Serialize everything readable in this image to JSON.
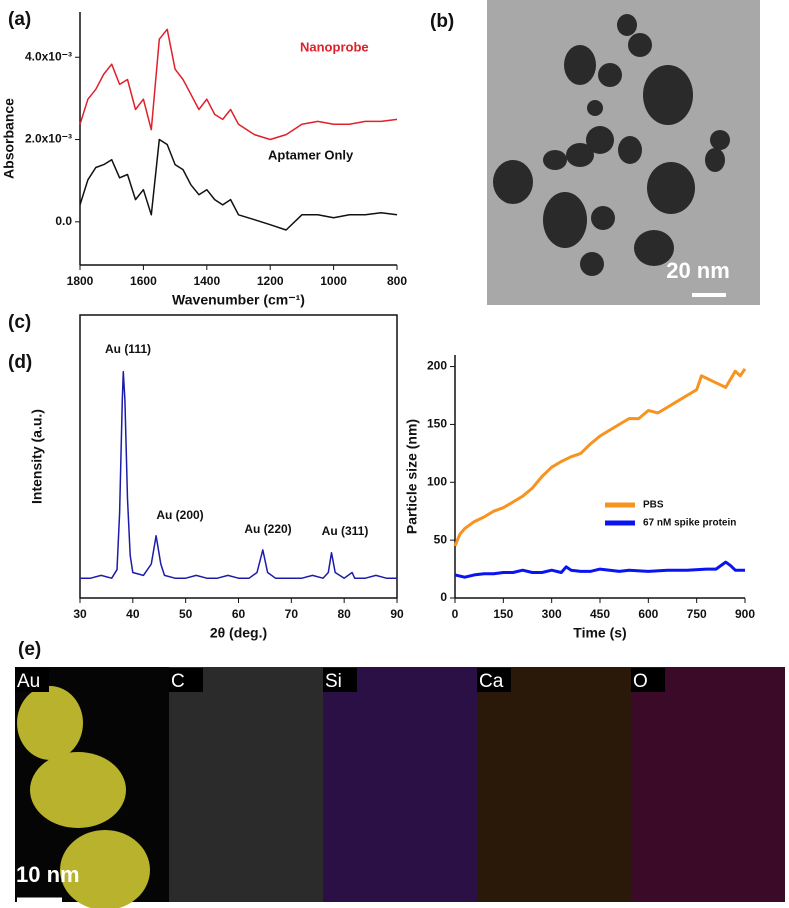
{
  "chart_data": [
    {
      "type": "line",
      "panel_label": "(a)",
      "x_label": "Wavenumber (cm⁻¹)",
      "y_label": "Absorbance",
      "x": [
        1800,
        1775,
        1750,
        1725,
        1700,
        1675,
        1650,
        1625,
        1600,
        1575,
        1550,
        1525,
        1500,
        1475,
        1450,
        1425,
        1400,
        1375,
        1350,
        1325,
        1300,
        1250,
        1200,
        1150,
        1100,
        1050,
        1000,
        950,
        900,
        850,
        800
      ],
      "xlim": [
        1800,
        800
      ],
      "xticks": [
        1800,
        1600,
        1400,
        1200,
        1000,
        800
      ],
      "ylim": [
        -0.00105,
        0.0051
      ],
      "yticks": [
        {
          "value": 0,
          "label": "0.0"
        },
        {
          "value": 0.002,
          "label": "2.0x10⁻³"
        },
        {
          "value": 0.004,
          "label": "4.0x10⁻³"
        }
      ],
      "series": [
        {
          "name": "Nanoprobe",
          "color": "#e0202a",
          "values": [
            0.00237,
            0.00298,
            0.00322,
            0.00359,
            0.00383,
            0.00334,
            0.00346,
            0.00273,
            0.00298,
            0.00224,
            0.00444,
            0.00468,
            0.00371,
            0.00346,
            0.0031,
            0.00273,
            0.00298,
            0.00261,
            0.00249,
            0.00273,
            0.00237,
            0.00212,
            0.002,
            0.00212,
            0.00237,
            0.00244,
            0.00237,
            0.00237,
            0.00244,
            0.00244,
            0.00249
          ]
        },
        {
          "name": "Aptamer Only",
          "color": "#111111",
          "values": [
            0.00041,
            0.00102,
            0.00132,
            0.00139,
            0.00151,
            0.00107,
            0.00115,
            0.00054,
            0.00078,
            0.00017,
            0.002,
            0.00188,
            0.00139,
            0.00127,
            0.0009,
            0.00066,
            0.00078,
            0.00054,
            0.00041,
            0.00054,
            0.00017,
            5e-05,
            -7e-05,
            -0.0002,
            0.00017,
            0.00017,
            0.0001,
            0.00017,
            0.00017,
            0.00022,
            0.00017
          ]
        }
      ]
    },
    {
      "type": "line",
      "panel_label": "(c)",
      "x_label": "2θ (deg.)",
      "y_label": "Intensity (a.u.)",
      "x": [
        30,
        32,
        34,
        36,
        37,
        37.5,
        38,
        38.2,
        38.5,
        39,
        39.5,
        40,
        42,
        43.5,
        44.4,
        45.3,
        46,
        48,
        50,
        52,
        54,
        56,
        58,
        60,
        62,
        63.5,
        64.6,
        65.5,
        67,
        70,
        72,
        74,
        76,
        77,
        77.6,
        78.3,
        80,
        81.5,
        82,
        84,
        86,
        88,
        90
      ],
      "xlim": [
        30,
        90
      ],
      "xticks": [
        30,
        40,
        50,
        60,
        70,
        80,
        90
      ],
      "ylim": [
        0,
        100
      ],
      "series": [
        {
          "color": "#1c1ca8",
          "values": [
            7,
            7,
            8,
            7,
            10,
            30,
            70,
            80,
            70,
            35,
            15,
            9,
            8,
            12,
            22,
            12,
            8,
            7,
            7,
            8,
            7,
            7,
            8,
            7,
            7,
            9,
            17,
            9,
            7,
            7,
            7,
            8,
            7,
            9,
            16,
            9,
            7,
            9,
            7,
            7,
            8,
            7,
            7
          ]
        }
      ],
      "annotations": [
        "Au (111)",
        "Au (200)",
        "Au (220)",
        "Au (311)"
      ]
    },
    {
      "type": "line",
      "panel_label": "(d)",
      "x_label": "Time (s)",
      "y_label": "Particle size (nm)",
      "xlim": [
        0,
        900
      ],
      "xticks": [
        0,
        150,
        300,
        450,
        600,
        750,
        900
      ],
      "ylim": [
        0,
        210
      ],
      "yticks": [
        0,
        50,
        100,
        150,
        200
      ],
      "legend": "right",
      "series": [
        {
          "name": "PBS",
          "color": "#f7931e",
          "x": [
            0,
            15,
            30,
            60,
            90,
            120,
            150,
            180,
            210,
            240,
            270,
            300,
            330,
            360,
            390,
            420,
            450,
            480,
            510,
            540,
            570,
            600,
            630,
            660,
            690,
            720,
            750,
            765,
            780,
            810,
            840,
            870,
            885,
            900
          ],
          "values": [
            45,
            55,
            60,
            66,
            70,
            75,
            78,
            83,
            88,
            95,
            105,
            113,
            118,
            122,
            125,
            133,
            140,
            145,
            150,
            155,
            155,
            162,
            160,
            165,
            170,
            175,
            180,
            192,
            190,
            186,
            182,
            196,
            192,
            198
          ]
        },
        {
          "name": "67 nM spike protein",
          "color": "#0a14f0",
          "x": [
            0,
            30,
            60,
            90,
            120,
            150,
            180,
            210,
            240,
            270,
            300,
            330,
            345,
            360,
            390,
            420,
            450,
            480,
            510,
            540,
            600,
            660,
            720,
            780,
            810,
            840,
            855,
            870,
            900
          ],
          "values": [
            20,
            18,
            20,
            21,
            21,
            22,
            22,
            24,
            22,
            22,
            24,
            22,
            27,
            24,
            23,
            23,
            25,
            24,
            23,
            24,
            23,
            24,
            24,
            25,
            25,
            31,
            28,
            24,
            24
          ]
        }
      ]
    }
  ],
  "tem_image": {
    "panel_label": "(b)",
    "scale_bar": "20 nm"
  },
  "eds_maps": {
    "panel_label": "(e)",
    "elements": [
      "Au",
      "C",
      "Si",
      "Ca",
      "O"
    ],
    "scale_bar": "10 nm"
  }
}
